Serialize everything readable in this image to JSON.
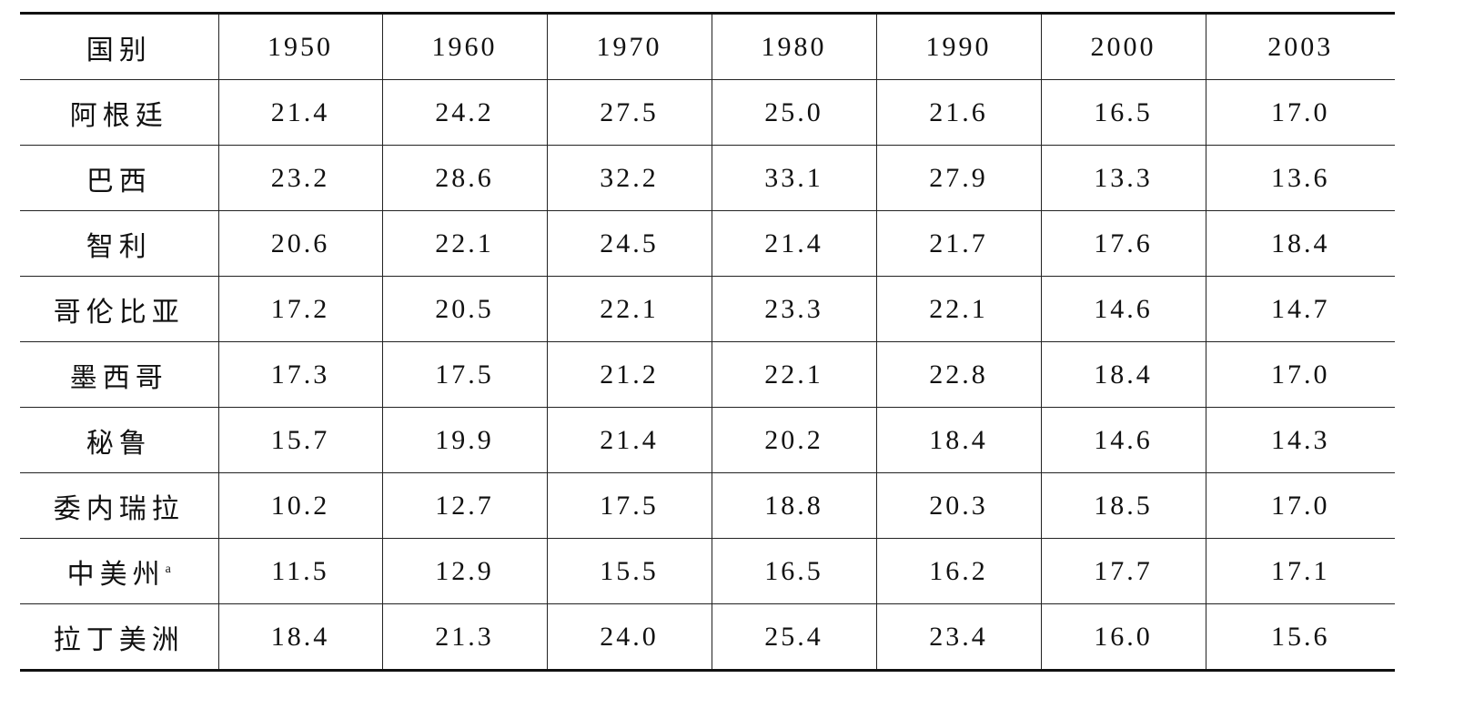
{
  "table": {
    "header": [
      "国别",
      "1950",
      "1960",
      "1970",
      "1980",
      "1990",
      "2000",
      "2003"
    ],
    "rows": [
      {
        "country": "阿根廷",
        "values": [
          "21.4",
          "24.2",
          "27.5",
          "25.0",
          "21.6",
          "16.5",
          "17.0"
        ]
      },
      {
        "country": "巴西",
        "values": [
          "23.2",
          "28.6",
          "32.2",
          "33.1",
          "27.9",
          "13.3",
          "13.6"
        ]
      },
      {
        "country": "智利",
        "values": [
          "20.6",
          "22.1",
          "24.5",
          "21.4",
          "21.7",
          "17.6",
          "18.4"
        ]
      },
      {
        "country": "哥伦比亚",
        "values": [
          "17.2",
          "20.5",
          "22.1",
          "23.3",
          "22.1",
          "14.6",
          "14.7"
        ]
      },
      {
        "country": "墨西哥",
        "values": [
          "17.3",
          "17.5",
          "21.2",
          "22.1",
          "22.8",
          "18.4",
          "17.0"
        ]
      },
      {
        "country": "秘鲁",
        "values": [
          "15.7",
          "19.9",
          "21.4",
          "20.2",
          "18.4",
          "14.6",
          "14.3"
        ]
      },
      {
        "country": "委内瑞拉",
        "values": [
          "10.2",
          "12.7",
          "17.5",
          "18.8",
          "20.3",
          "18.5",
          "17.0"
        ]
      },
      {
        "country": "中美州",
        "mark": "a",
        "values": [
          "11.5",
          "12.9",
          "15.5",
          "16.5",
          "16.2",
          "17.7",
          "17.1"
        ]
      },
      {
        "country": "拉丁美洲",
        "values": [
          "18.4",
          "21.3",
          "24.0",
          "25.4",
          "23.4",
          "16.0",
          "15.6"
        ]
      }
    ]
  }
}
